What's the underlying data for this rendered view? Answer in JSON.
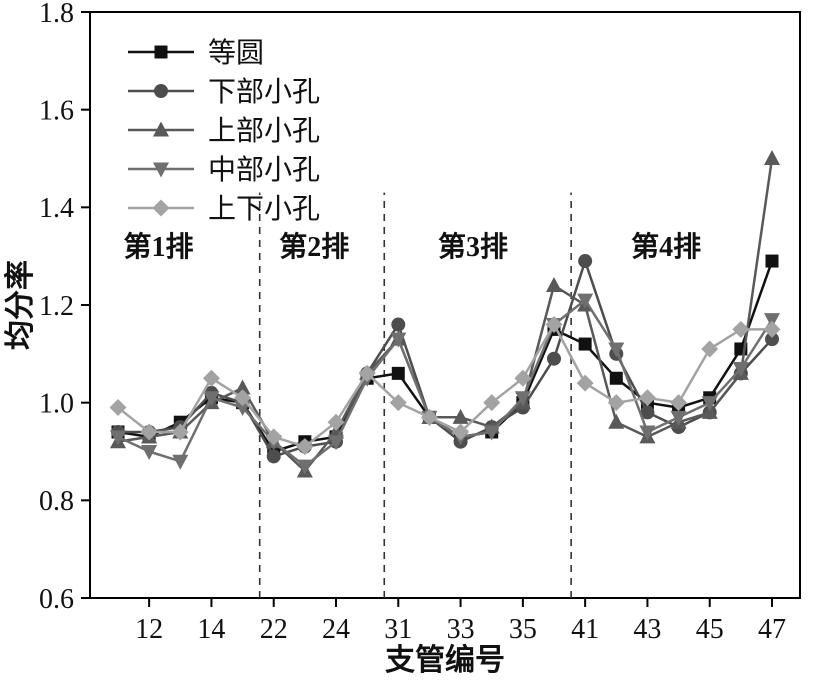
{
  "chart_data": {
    "type": "line",
    "title": "",
    "xlabel": "支管编号",
    "ylabel": "均分率",
    "ylim": [
      0.6,
      1.8
    ],
    "ytick_step": 0.2,
    "y_tick_labels": [
      "0.6",
      "0.8",
      "1.0",
      "1.2",
      "1.4",
      "1.6",
      "1.8"
    ],
    "x_tick_labels": [
      "",
      "12",
      "",
      "14",
      "",
      "22",
      "",
      "24",
      "",
      "31",
      "",
      "33",
      "",
      "35",
      "",
      "41",
      "",
      "43",
      "",
      "45",
      "",
      "47"
    ],
    "grid": false,
    "legend_position": "top-left",
    "series": [
      {
        "name": "等圆",
        "marker": "square",
        "color": "#111111",
        "values": [
          0.94,
          0.93,
          0.96,
          1.01,
          1.0,
          0.9,
          0.92,
          0.93,
          1.05,
          1.06,
          0.97,
          0.93,
          0.94,
          1.0,
          1.15,
          1.12,
          1.05,
          1.0,
          0.99,
          1.01,
          1.11,
          1.29
        ]
      },
      {
        "name": "下部小孔",
        "marker": "circle",
        "color": "#4d4d4d",
        "values": [
          0.94,
          0.94,
          0.95,
          1.02,
          1.0,
          0.89,
          0.91,
          0.92,
          1.06,
          1.16,
          0.97,
          0.92,
          0.95,
          0.99,
          1.09,
          1.29,
          1.1,
          0.98,
          0.95,
          0.98,
          1.06,
          1.13
        ]
      },
      {
        "name": "上部小孔",
        "marker": "triangle-up",
        "color": "#595959",
        "values": [
          0.92,
          0.93,
          0.94,
          1.0,
          1.03,
          0.92,
          0.86,
          0.94,
          1.06,
          1.13,
          0.97,
          0.97,
          0.95,
          1.0,
          1.24,
          1.2,
          0.96,
          0.93,
          0.96,
          0.98,
          1.06,
          1.5
        ]
      },
      {
        "name": "中部小孔",
        "marker": "triangle-down",
        "color": "#6f6f6f",
        "values": [
          0.93,
          0.9,
          0.88,
          1.01,
          0.99,
          0.92,
          0.87,
          0.92,
          1.05,
          1.13,
          0.97,
          0.93,
          0.94,
          1.01,
          1.16,
          1.21,
          1.11,
          0.94,
          0.97,
          1.0,
          1.07,
          1.17
        ]
      },
      {
        "name": "上下小孔",
        "marker": "diamond",
        "color": "#a3a3a3",
        "values": [
          0.99,
          0.94,
          0.94,
          1.05,
          1.01,
          0.93,
          0.91,
          0.96,
          1.06,
          1.0,
          0.97,
          0.94,
          1.0,
          1.05,
          1.16,
          1.04,
          1.0,
          1.01,
          1.0,
          1.11,
          1.15,
          1.15
        ]
      }
    ],
    "dividers": {
      "style": "dashed",
      "after_indices": [
        4,
        8,
        14
      ],
      "fraction": 0.55,
      "top_value": 1.43
    },
    "group_labels": [
      {
        "text": "第1排",
        "x_index": 1.3,
        "value": 1.3
      },
      {
        "text": "第2排",
        "x_index": 6.3,
        "value": 1.3
      },
      {
        "text": "第3排",
        "x_index": 11.4,
        "value": 1.3
      },
      {
        "text": "第4排",
        "x_index": 17.6,
        "value": 1.3
      }
    ]
  }
}
